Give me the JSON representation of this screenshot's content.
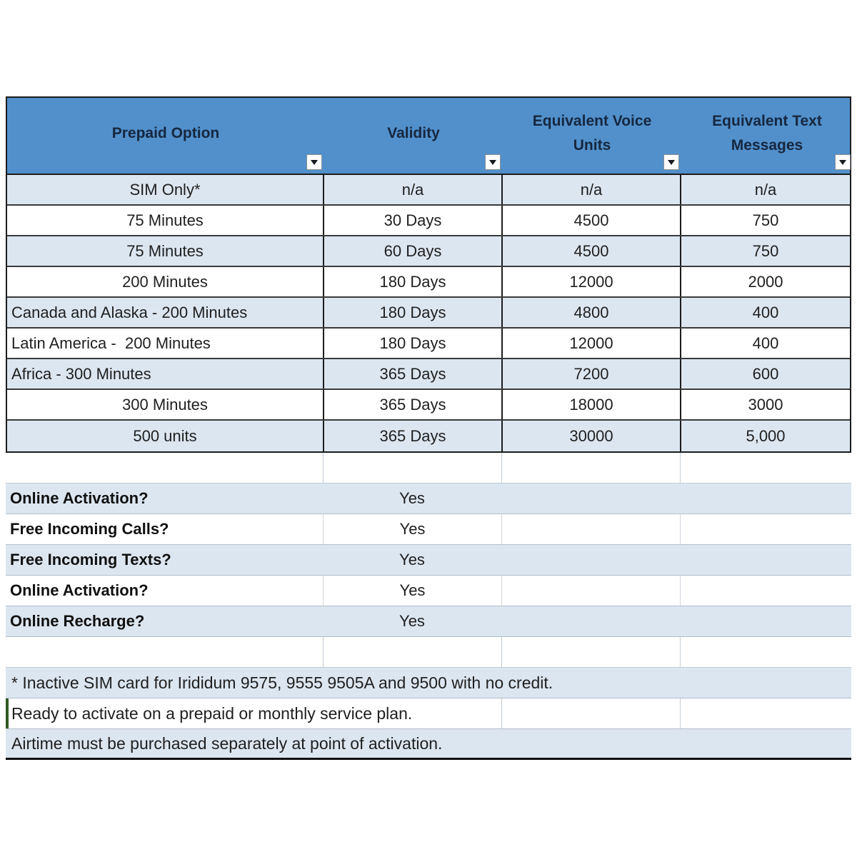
{
  "table": {
    "columns": [
      {
        "label": "Prepaid Option"
      },
      {
        "label": "Validity"
      },
      {
        "label": "Equivalent Voice Units"
      },
      {
        "label": "Equivalent Text Messages"
      }
    ],
    "filter_icon": "filter-dropdown-arrow",
    "rows": [
      {
        "option": "SIM Only*",
        "validity": "n/a",
        "voice_units": "n/a",
        "text_messages": "n/a",
        "align": "center"
      },
      {
        "option": "75 Minutes",
        "validity": "30 Days",
        "voice_units": "4500",
        "text_messages": "750",
        "align": "center"
      },
      {
        "option": "75 Minutes",
        "validity": "60 Days",
        "voice_units": "4500",
        "text_messages": "750",
        "align": "center"
      },
      {
        "option": "200 Minutes",
        "validity": "180 Days",
        "voice_units": "12000",
        "text_messages": "2000",
        "align": "center"
      },
      {
        "option": "Canada and Alaska - 200 Minutes",
        "validity": "180 Days",
        "voice_units": "4800",
        "text_messages": "400",
        "align": "left"
      },
      {
        "option": "Latin America -  200 Minutes",
        "validity": "180 Days",
        "voice_units": "12000",
        "text_messages": "400",
        "align": "left"
      },
      {
        "option": "Africa - 300 Minutes",
        "validity": "365 Days",
        "voice_units": "7200",
        "text_messages": "600",
        "align": "left"
      },
      {
        "option": "300 Minutes",
        "validity": "365 Days",
        "voice_units": "18000",
        "text_messages": "3000",
        "align": "center"
      },
      {
        "option": "500 units",
        "validity": "365 Days",
        "voice_units": "30000",
        "text_messages": "5,000",
        "align": "center"
      }
    ],
    "features": [
      {
        "question": "Online Activation?",
        "answer": "Yes"
      },
      {
        "question": "Free Incoming Calls?",
        "answer": "Yes"
      },
      {
        "question": "Free Incoming Texts?",
        "answer": "Yes"
      },
      {
        "question": "Online Activation?",
        "answer": "Yes"
      },
      {
        "question": "Online Recharge?",
        "answer": "Yes"
      }
    ],
    "notes": [
      "* Inactive SIM card for Irididum 9575, 9555 9505A and 9500 with no credit.",
      "Ready to activate on a prepaid or monthly service plan.",
      "Airtime must be purchased separately at point of activation."
    ]
  },
  "colors": {
    "header_bg": "#5190CB",
    "header_text": "#16273F",
    "stripe_bg": "#DCE6F1",
    "grid_dark": "#1C1C1C",
    "green_accent": "#2F5B22"
  }
}
